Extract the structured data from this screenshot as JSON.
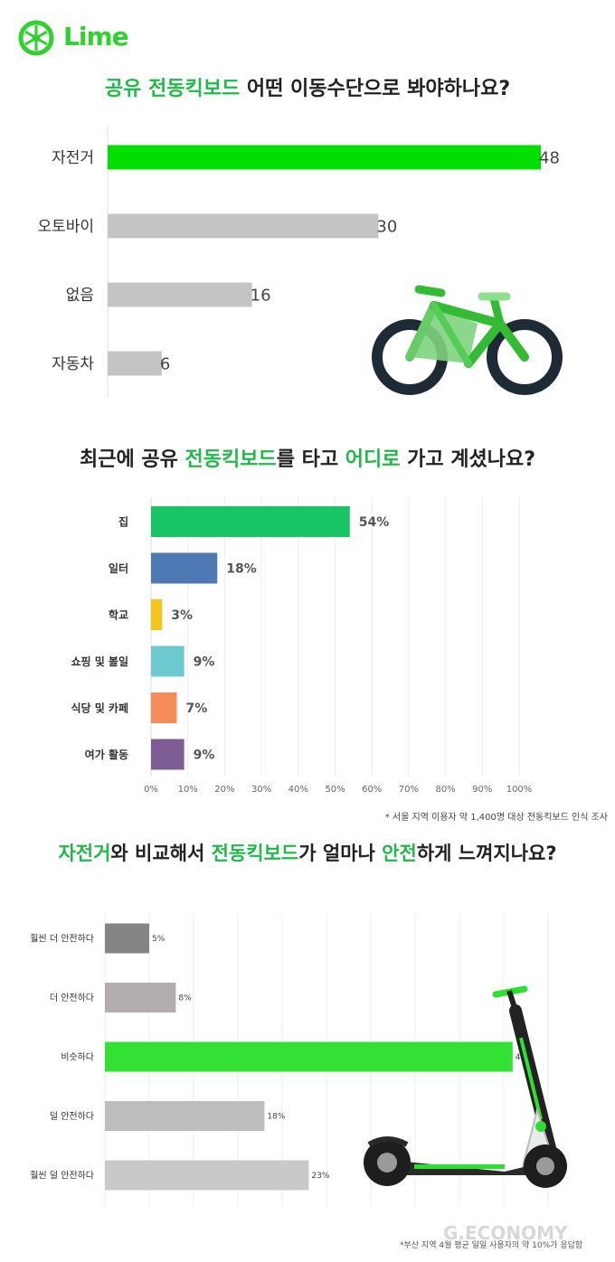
{
  "brand": {
    "name": "Lime",
    "accent_color": "#2fd12f",
    "icon": "lime-wheel-icon"
  },
  "watermark": "G.ECONOMY",
  "sections": [
    {
      "title_parts": [
        {
          "text": "공유 전동킥보드",
          "highlight": true
        },
        {
          "text": " 어떤 이동수단으로 봐야하나요?",
          "highlight": false
        }
      ],
      "illustration": "bicycle-icon"
    },
    {
      "title_parts": [
        {
          "text": "최근에 공유 ",
          "highlight": false
        },
        {
          "text": "전동킥보드",
          "highlight": true
        },
        {
          "text": "를 타고 ",
          "highlight": false
        },
        {
          "text": "어디로",
          "highlight": true
        },
        {
          "text": " 가고 계셨나요?",
          "highlight": false
        }
      ],
      "footnote": "* 서울 지역 이용자 약 1,400명 대상 전동킥보드 인식 조사"
    },
    {
      "title_parts": [
        {
          "text": "자전거",
          "highlight": true
        },
        {
          "text": "와 비교해서 ",
          "highlight": false
        },
        {
          "text": "전동킥보드",
          "highlight": true
        },
        {
          "text": "가 얼마나  ",
          "highlight": false
        },
        {
          "text": "안전",
          "highlight": true
        },
        {
          "text": "하게 느껴지나요?",
          "highlight": false
        }
      ],
      "footnote": "*부산 지역 4월 평균 일일 사용자의 약 10%가 응답함",
      "illustration": "lime-scooter-icon"
    }
  ],
  "chart_data": [
    {
      "type": "bar",
      "orientation": "horizontal",
      "categories": [
        "자전거",
        "오토바이",
        "없음",
        "자동차"
      ],
      "values": [
        48,
        30,
        16,
        6
      ],
      "value_labels": [
        "48",
        "30",
        "16",
        "6"
      ],
      "colors": [
        "#00e000",
        "#c4c4c4",
        "#c4c4c4",
        "#c4c4c4"
      ],
      "xlim": [
        0,
        48
      ],
      "grid": false
    },
    {
      "type": "bar",
      "orientation": "horizontal",
      "categories": [
        "집",
        "일터",
        "학교",
        "쇼핑 및 볼일",
        "식당 및 카페",
        "여가 활동"
      ],
      "values": [
        54,
        18,
        3,
        9,
        7,
        9
      ],
      "value_labels": [
        "54%",
        "18%",
        "3%",
        "9%",
        "7%",
        "9%"
      ],
      "colors": [
        "#19c464",
        "#4f79b4",
        "#f5c518",
        "#6cc9cf",
        "#f78c5b",
        "#7d5c94"
      ],
      "xlim": [
        0,
        100
      ],
      "x_ticks": [
        "0%",
        "10%",
        "20%",
        "30%",
        "40%",
        "50%",
        "60%",
        "70%",
        "80%",
        "90%",
        "100%"
      ],
      "grid": true
    },
    {
      "type": "bar",
      "orientation": "horizontal",
      "categories": [
        "훨씬 더 안전하다",
        "더 안전하다",
        "비슷하다",
        "덜 안전하다",
        "훨씬 덜 안전하다"
      ],
      "values": [
        5,
        8,
        46,
        18,
        23
      ],
      "value_labels": [
        "5%",
        "8%",
        "46%",
        "18%",
        "23%"
      ],
      "colors": [
        "#858585",
        "#b3adad",
        "#33e033",
        "#bdbdbd",
        "#c9c9c9"
      ],
      "xlim": [
        0,
        50
      ],
      "grid": true
    }
  ]
}
